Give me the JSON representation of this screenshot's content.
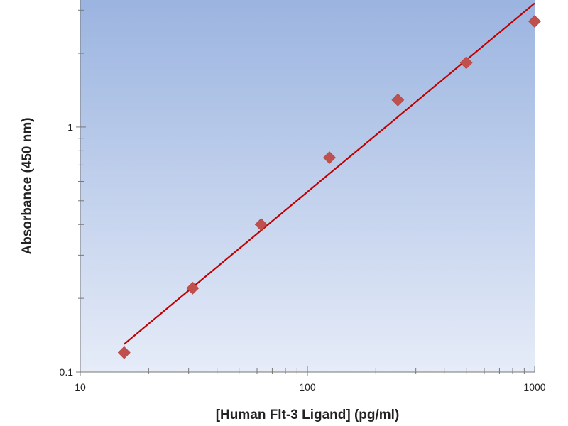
{
  "chart_data": {
    "type": "scatter",
    "title": "",
    "xlabel": "[Human Flt-3 Ligand] (pg/ml)",
    "ylabel": "Absorbance (450 nm)",
    "x_scale": "log",
    "y_scale": "log",
    "xlim": [
      10,
      1000
    ],
    "ylim": [
      0.1,
      3.3
    ],
    "x_ticks": [
      10,
      100,
      1000
    ],
    "x_tick_labels": [
      "10",
      "100",
      "1000"
    ],
    "y_ticks": [
      0.1,
      1
    ],
    "y_tick_labels": [
      "0.1",
      "1"
    ],
    "grid": false,
    "legend": "none",
    "background_gradient": [
      "#9bb4e0",
      "#e6ecf8"
    ],
    "series": [
      {
        "type": "scatter",
        "marker": "diamond",
        "color": "#c0504d",
        "x": [
          15.6,
          31.25,
          62.5,
          125,
          250,
          500,
          1000
        ],
        "y": [
          0.12,
          0.22,
          0.4,
          0.75,
          1.29,
          1.83,
          2.7
        ]
      },
      {
        "type": "line",
        "fit": "power",
        "color": "#c00000",
        "x": [
          15.6,
          1000
        ],
        "y": [
          0.13,
          3.2
        ]
      }
    ]
  }
}
